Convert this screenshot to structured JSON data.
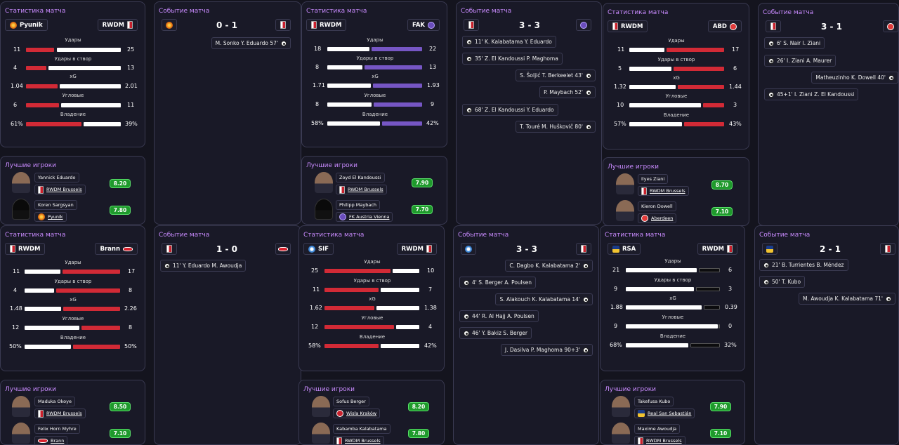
{
  "labels": {
    "match_stats": "Статистика матча",
    "match_events": "Событие матча",
    "best_players": "Лучшие игроки",
    "shots": "Удары",
    "shots_on_target": "Удары в створ",
    "xg": "xG",
    "corners": "Угловые",
    "possession": "Владение"
  },
  "colors": {
    "accent_title": "#c98bff",
    "rating_green": "#1f9a2c",
    "rwdm_red": "#d22a36",
    "fak_purple": "#7656c4"
  },
  "matches": [
    {
      "home": "Pyunik",
      "away": "RWDM",
      "score": "0 - 1",
      "stats": {
        "shots": [
          "11",
          "25"
        ],
        "sot": [
          "4",
          "13"
        ],
        "xg": [
          "1.04",
          "2.01"
        ],
        "corners": [
          "6",
          "11"
        ],
        "poss": [
          "61%",
          "39%"
        ]
      },
      "events": [
        {
          "text": "M. Sonko  Y. Eduardo  57'",
          "side": "right"
        }
      ],
      "players": [
        {
          "name": "Yannick Eduardo",
          "club": "RWDM Brussels",
          "rating": "8.20"
        },
        {
          "name": "Koren Sargsyan",
          "club": "Pyunik",
          "rating": "7.80"
        }
      ]
    },
    {
      "home": "RWDM",
      "away": "FAK",
      "score": "3 - 3",
      "stats": {
        "shots": [
          "18",
          "22"
        ],
        "sot": [
          "8",
          "13"
        ],
        "xg": [
          "1.71",
          "1.93"
        ],
        "corners": [
          "8",
          "9"
        ],
        "poss": [
          "58%",
          "42%"
        ]
      },
      "events": [
        {
          "text": "11'  K. Kalabatama  Y. Eduardo",
          "side": "left"
        },
        {
          "text": "35'  Z. El Kandoussi  P. Maghoma",
          "side": "left"
        },
        {
          "text": "S. Šoljić  T. Berkeeiet  43'",
          "side": "right"
        },
        {
          "text": "P. Maybach  52'",
          "side": "right"
        },
        {
          "text": "68'  Z. El Kandoussi  Y. Eduardo",
          "side": "left"
        },
        {
          "text": "T. Touré  M. Huškovič  80'",
          "side": "right"
        }
      ],
      "players": [
        {
          "name": "Zoyd El Kandoussi",
          "club": "RWDM Brussels",
          "rating": "7.90"
        },
        {
          "name": "Philipp Maybach",
          "club": "FK Austria Vienna",
          "rating": "7.70"
        }
      ]
    },
    {
      "home": "RWDM",
      "away": "ABD",
      "score": "3 - 1",
      "stats": {
        "shots": [
          "11",
          "17"
        ],
        "sot": [
          "5",
          "6"
        ],
        "xg": [
          "1.32",
          "1.44"
        ],
        "corners": [
          "10",
          "3"
        ],
        "poss": [
          "57%",
          "43%"
        ]
      },
      "events": [
        {
          "text": "6'  S. Nair  I. Ziani",
          "side": "left"
        },
        {
          "text": "26'  I. Ziani  A. Maurer",
          "side": "left"
        },
        {
          "text": "Matheuzinho  K. Dowell  40'",
          "side": "right"
        },
        {
          "text": "45+1'  I. Ziani  Z. El Kandoussi",
          "side": "left"
        }
      ],
      "players": [
        {
          "name": "Ilyes Ziani",
          "club": "RWDM Brussels",
          "rating": "8.70"
        },
        {
          "name": "Kieron Dowell",
          "club": "Aberdeen",
          "rating": "7.10"
        }
      ]
    },
    {
      "home": "RWDM",
      "away": "Brann",
      "score": "1 - 0",
      "stats": {
        "shots": [
          "11",
          "17"
        ],
        "sot": [
          "4",
          "8"
        ],
        "xg": [
          "1.48",
          "2.26"
        ],
        "corners": [
          "12",
          "8"
        ],
        "poss": [
          "50%",
          "50%"
        ]
      },
      "events": [
        {
          "text": "11'  Y. Eduardo  M. Awoudja",
          "side": "left"
        }
      ],
      "players": [
        {
          "name": "Maduka Okoye",
          "club": "RWDM Brussels",
          "rating": "8.50"
        },
        {
          "name": "Felix Horn Myhre",
          "club": "Brann",
          "rating": "7.10"
        }
      ]
    },
    {
      "home": "SIF",
      "away": "RWDM",
      "score": "3 - 3",
      "stats": {
        "shots": [
          "25",
          "10"
        ],
        "sot": [
          "11",
          "7"
        ],
        "xg": [
          "1.62",
          "1.38"
        ],
        "corners": [
          "12",
          "4"
        ],
        "poss": [
          "58%",
          "42%"
        ]
      },
      "events": [
        {
          "text": "C. Dagbo  K. Kalabatama  2'",
          "side": "right"
        },
        {
          "text": "4'  S. Berger  A. Poulsen",
          "side": "left"
        },
        {
          "text": "S. Alakouch  K. Kalabatama  14'",
          "side": "right"
        },
        {
          "text": "44'  R. Al Hajj  A. Poulsen",
          "side": "left"
        },
        {
          "text": "46'  Y. Bakiz  S. Berger",
          "side": "left"
        },
        {
          "text": "J. Dasilva  P. Maghoma  90+3'",
          "side": "right"
        }
      ],
      "players": [
        {
          "name": "Sofus Berger",
          "club": "Wisła Kraków",
          "rating": "8.20"
        },
        {
          "name": "Kabamba Kalabatama",
          "club": "RWDM Brussels",
          "rating": "7.80"
        }
      ]
    },
    {
      "home": "RSA",
      "away": "RWDM",
      "score": "2 - 1",
      "stats": {
        "shots": [
          "21",
          "6"
        ],
        "sot": [
          "9",
          "3"
        ],
        "xg": [
          "1.88",
          "0.39"
        ],
        "corners": [
          "9",
          "0"
        ],
        "poss": [
          "68%",
          "32%"
        ]
      },
      "events": [
        {
          "text": "21'  B. Turrientes  B. Méndez",
          "side": "left"
        },
        {
          "text": "50'  T. Kubo",
          "side": "left"
        },
        {
          "text": "M. Awoudja  K. Kalabatama  71'",
          "side": "right"
        }
      ],
      "players": [
        {
          "name": "Takefusa Kubo",
          "club": "Real San Sebastián",
          "rating": "7.90"
        },
        {
          "name": "Maxime Awoudja",
          "club": "RWDM Brussels",
          "rating": "7.10"
        }
      ]
    }
  ]
}
